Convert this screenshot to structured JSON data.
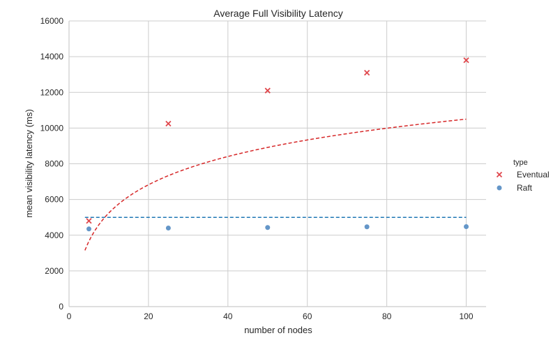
{
  "chart_data": {
    "type": "scatter",
    "title": "Average Full Visibility Latency",
    "xlabel": "number of nodes",
    "ylabel": "mean visibility latency (ms)",
    "xlim": [
      0,
      105
    ],
    "ylim": [
      0,
      16000
    ],
    "x_ticks": [
      0,
      20,
      40,
      60,
      80,
      100
    ],
    "y_ticks": [
      0,
      2000,
      4000,
      6000,
      8000,
      10000,
      12000,
      14000,
      16000
    ],
    "grid": true,
    "legend_title": "type",
    "legend_position": "right",
    "series": [
      {
        "name": "Eventual",
        "marker": "x",
        "color": "#e0474c",
        "x": [
          5,
          25,
          50,
          75,
          100
        ],
        "y": [
          4800,
          10250,
          12100,
          13100,
          13800
        ]
      },
      {
        "name": "Raft",
        "marker": "circle",
        "color": "#6496c8",
        "x": [
          5,
          25,
          50,
          75,
          100
        ],
        "y": [
          4350,
          4400,
          4430,
          4470,
          4480
        ]
      }
    ],
    "fit_lines": [
      {
        "series": "Eventual",
        "style": "dashed",
        "color": "#d62728",
        "model": "logarithmic",
        "x_range": [
          4,
          100
        ],
        "points": [
          [
            4,
            3150
          ],
          [
            10,
            5500
          ],
          [
            20,
            6800
          ],
          [
            40,
            8400
          ],
          [
            60,
            9300
          ],
          [
            80,
            10000
          ],
          [
            100,
            10500
          ]
        ]
      },
      {
        "series": "Raft",
        "style": "dashed",
        "color": "#1f77b4",
        "model": "constant",
        "x_range": [
          4,
          100
        ],
        "points": [
          [
            4,
            5000
          ],
          [
            100,
            5000
          ]
        ]
      }
    ]
  }
}
